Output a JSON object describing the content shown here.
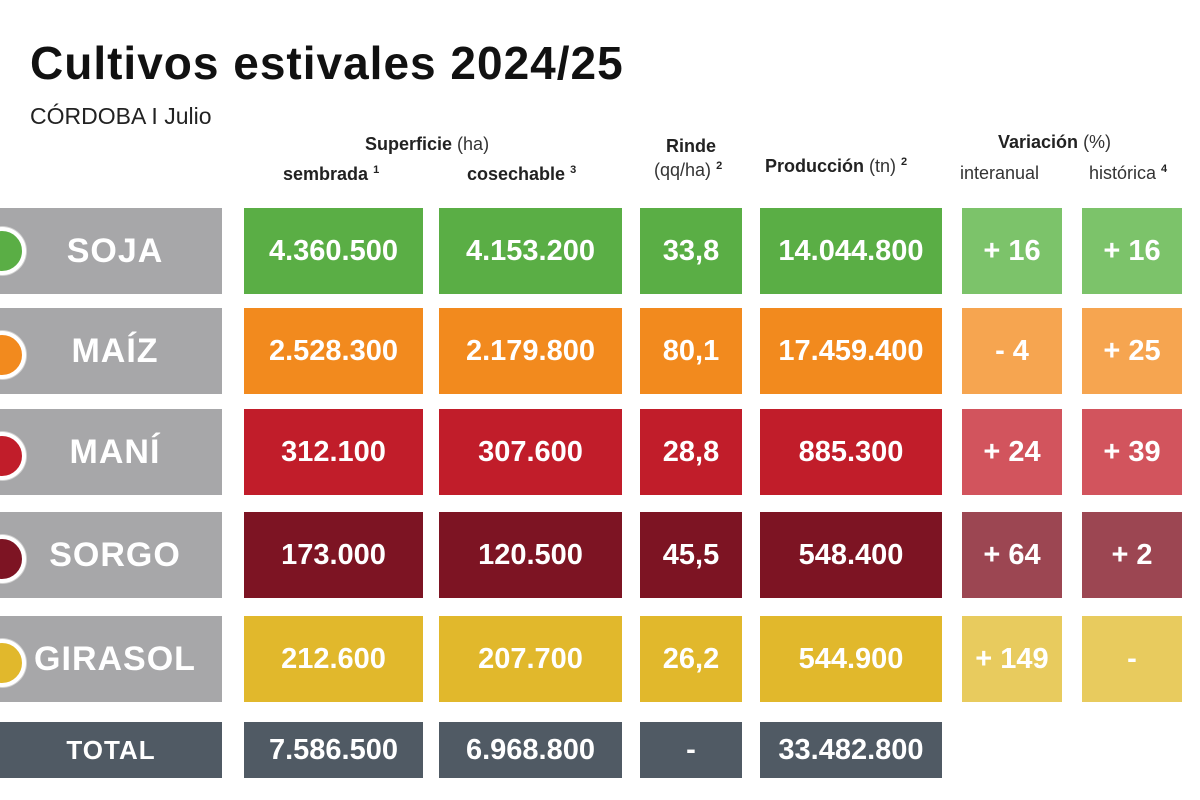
{
  "title": "Cultivos estivales 2024/25",
  "subtitle": "CÓRDOBA I Julio",
  "headers": {
    "superficie": "Superficie",
    "superficie_unit": "(ha)",
    "sembrada": "sembrada",
    "sembrada_note": "1",
    "cosechable": "cosechable",
    "cosechable_note": "3",
    "rinde": "Rinde",
    "rinde_unit": "(qq/ha)",
    "rinde_note": "2",
    "produccion": "Producción",
    "produccion_unit": "(tn)",
    "produccion_note": "2",
    "variacion": "Variación",
    "variacion_unit": "(%)",
    "interanual": "interanual",
    "historica": "histórica",
    "historica_note": "4"
  },
  "chart_data": {
    "type": "table",
    "columns": [
      "Superficie sembrada (ha)",
      "Superficie cosechable (ha)",
      "Rinde (qq/ha)",
      "Producción (tn)",
      "Variación interanual (%)",
      "Variación histórica (%)"
    ],
    "rows": [
      {
        "crop": "SOJA",
        "sembrada": "4.360.500",
        "cosechable": "4.153.200",
        "rinde": "33,8",
        "produccion": "14.044.800",
        "interanual": "+ 16",
        "historica": "+ 16"
      },
      {
        "crop": "MAÍZ",
        "sembrada": "2.528.300",
        "cosechable": "2.179.800",
        "rinde": "80,1",
        "produccion": "17.459.400",
        "interanual": "- 4",
        "historica": "+ 25"
      },
      {
        "crop": "MANÍ",
        "sembrada": "312.100",
        "cosechable": "307.600",
        "rinde": "28,8",
        "produccion": "885.300",
        "interanual": "+ 24",
        "historica": "+ 39"
      },
      {
        "crop": "SORGO",
        "sembrada": "173.000",
        "cosechable": "120.500",
        "rinde": "45,5",
        "produccion": "548.400",
        "interanual": "+ 64",
        "historica": "+ 2"
      },
      {
        "crop": "GIRASOL",
        "sembrada": "212.600",
        "cosechable": "207.700",
        "rinde": "26,2",
        "produccion": "544.900",
        "interanual": "+ 149",
        "historica": "-"
      }
    ],
    "total": {
      "label": "TOTAL",
      "sembrada": "7.586.500",
      "cosechable": "6.968.800",
      "rinde": "-",
      "produccion": "33.482.800"
    }
  },
  "colors": {
    "soja": "#5aae45",
    "soja_light": "#7cc36a",
    "maiz": "#f28a1e",
    "maiz_light": "#f6a550",
    "mani": "#c11d2a",
    "mani_light": "#d2545d",
    "sorgo": "#7d1423",
    "sorgo_light": "#9c4652",
    "girasol": "#e1b82c",
    "girasol_light": "#e8cb5e",
    "label_gray": "#a7a7a9",
    "total": "#505a64"
  }
}
